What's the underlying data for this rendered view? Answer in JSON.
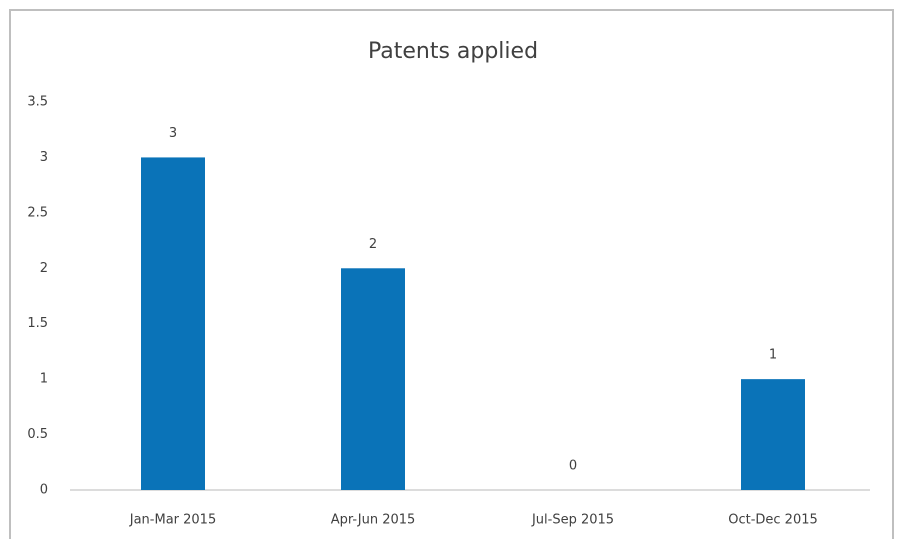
{
  "chart_data": {
    "type": "bar",
    "title": "Patents applied",
    "categories": [
      "Jan-Mar 2015",
      "Apr-Jun 2015",
      "Jul-Sep 2015",
      "Oct-Dec 2015"
    ],
    "values": [
      3,
      2,
      0,
      1
    ],
    "color": "#0a73b8",
    "ylim": [
      0,
      3.5
    ],
    "yticks": [
      0,
      0.5,
      1,
      1.5,
      2,
      2.5,
      3,
      3.5
    ],
    "grid": false
  }
}
